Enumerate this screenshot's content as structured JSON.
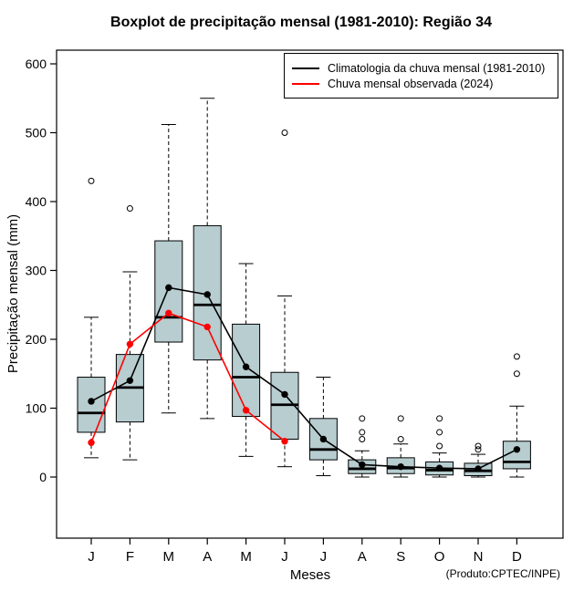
{
  "footer": "(Produto:CPTEC/INPE)",
  "chart_data": {
    "type": "boxplot",
    "title": "Boxplot de precipitação mensal (1981-2010): Região 34",
    "xlabel": "Meses",
    "ylabel": "Precipitação mensal (mm)",
    "categories": [
      "J",
      "F",
      "M",
      "A",
      "M",
      "J",
      "J",
      "A",
      "S",
      "O",
      "N",
      "D"
    ],
    "ylim": [
      0,
      600
    ],
    "yticks": [
      0,
      100,
      200,
      300,
      400,
      500,
      600
    ],
    "grid": false,
    "legend_position": "top-right",
    "box_fill": "#b7cdd0",
    "box_stroke": "#000000",
    "boxes": [
      {
        "month": "J",
        "whisker_low": 28,
        "q1": 65,
        "median": 93,
        "q3": 145,
        "whisker_high": 232,
        "outliers": [
          430
        ]
      },
      {
        "month": "F",
        "whisker_low": 25,
        "q1": 80,
        "median": 130,
        "q3": 178,
        "whisker_high": 298,
        "outliers": [
          390
        ]
      },
      {
        "month": "M",
        "whisker_low": 93,
        "q1": 196,
        "median": 232,
        "q3": 343,
        "whisker_high": 512,
        "outliers": []
      },
      {
        "month": "A",
        "whisker_low": 85,
        "q1": 170,
        "median": 250,
        "q3": 365,
        "whisker_high": 550,
        "outliers": []
      },
      {
        "month": "M",
        "whisker_low": 30,
        "q1": 88,
        "median": 145,
        "q3": 222,
        "whisker_high": 310,
        "outliers": []
      },
      {
        "month": "J",
        "whisker_low": 15,
        "q1": 55,
        "median": 105,
        "q3": 152,
        "whisker_high": 263,
        "outliers": [
          500
        ]
      },
      {
        "month": "J",
        "whisker_low": 2,
        "q1": 25,
        "median": 40,
        "q3": 85,
        "whisker_high": 145,
        "outliers": []
      },
      {
        "month": "A",
        "whisker_low": 0,
        "q1": 5,
        "median": 12,
        "q3": 25,
        "whisker_high": 38,
        "outliers": [
          55,
          65,
          85
        ]
      },
      {
        "month": "S",
        "whisker_low": 0,
        "q1": 5,
        "median": 13,
        "q3": 28,
        "whisker_high": 48,
        "outliers": [
          55,
          85
        ]
      },
      {
        "month": "O",
        "whisker_low": 0,
        "q1": 3,
        "median": 10,
        "q3": 22,
        "whisker_high": 35,
        "outliers": [
          45,
          65,
          85
        ]
      },
      {
        "month": "N",
        "whisker_low": 0,
        "q1": 2,
        "median": 9,
        "q3": 20,
        "whisker_high": 33,
        "outliers": [
          40,
          45
        ]
      },
      {
        "month": "D",
        "whisker_low": 0,
        "q1": 12,
        "median": 22,
        "q3": 52,
        "whisker_high": 103,
        "outliers": [
          150,
          175
        ]
      }
    ],
    "series": [
      {
        "name": "Climatologia da chuva mensal (1981-2010)",
        "color": "#000000",
        "values": [
          110,
          140,
          275,
          265,
          160,
          120,
          55,
          18,
          15,
          13,
          12,
          40
        ]
      },
      {
        "name": "Chuva mensal observada (2024)",
        "color": "#ff0000",
        "values": [
          50,
          193,
          238,
          218,
          97,
          52,
          null,
          null,
          null,
          null,
          null,
          null
        ]
      }
    ]
  }
}
